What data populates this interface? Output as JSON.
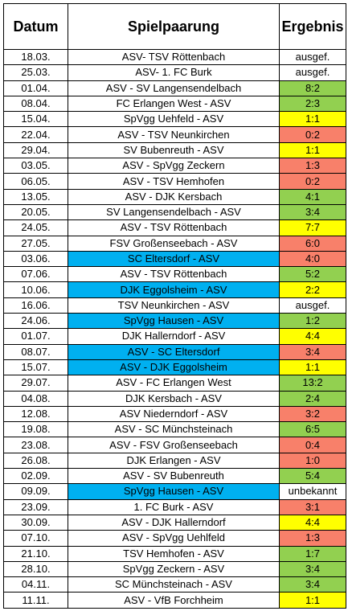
{
  "header": {
    "date": "Datum",
    "match": "Spielpaarung",
    "result": "Ergebnis"
  },
  "colors": {
    "win": "#92d050",
    "draw": "#ffff00",
    "loss": "#f8806a",
    "highlight": "#00b0f0",
    "none": "#ffffff"
  },
  "rows": [
    {
      "date": "18.03.",
      "match": "ASV- TSV Röttenbach",
      "result": "ausgef.",
      "result_status": "none",
      "match_highlight": false
    },
    {
      "date": "25.03.",
      "match": "ASV- 1. FC Burk",
      "result": "ausgef.",
      "result_status": "none",
      "match_highlight": false
    },
    {
      "date": "01.04.",
      "match": "ASV - SV Langensendelbach",
      "result": "8:2",
      "result_status": "win",
      "match_highlight": false
    },
    {
      "date": "08.04.",
      "match": "FC Erlangen West - ASV",
      "result": "2:3",
      "result_status": "win",
      "match_highlight": false
    },
    {
      "date": "15.04.",
      "match": "SpVgg Uehfeld - ASV",
      "result": "1:1",
      "result_status": "draw",
      "match_highlight": false
    },
    {
      "date": "22.04.",
      "match": "ASV - TSV Neunkirchen",
      "result": "0:2",
      "result_status": "loss",
      "match_highlight": false
    },
    {
      "date": "29.04.",
      "match": "SV Bubenreuth - ASV",
      "result": "1:1",
      "result_status": "draw",
      "match_highlight": false
    },
    {
      "date": "03.05.",
      "match": "ASV - SpVgg Zeckern",
      "result": "1:3",
      "result_status": "loss",
      "match_highlight": false
    },
    {
      "date": "06.05.",
      "match": "ASV - TSV Hemhofen",
      "result": "0:2",
      "result_status": "loss",
      "match_highlight": false
    },
    {
      "date": "13.05.",
      "match": "ASV - DJK Kersbach",
      "result": "4:1",
      "result_status": "win",
      "match_highlight": false
    },
    {
      "date": "20.05.",
      "match": "SV Langensendelbach - ASV",
      "result": "3:4",
      "result_status": "win",
      "match_highlight": false
    },
    {
      "date": "24.05.",
      "match": "ASV - TSV Röttenbach",
      "result": "7:7",
      "result_status": "draw",
      "match_highlight": false
    },
    {
      "date": "27.05.",
      "match": "FSV Großenseebach - ASV",
      "result": "6:0",
      "result_status": "loss",
      "match_highlight": false
    },
    {
      "date": "03.06.",
      "match": "SC Eltersdorf - ASV",
      "result": "4:0",
      "result_status": "loss",
      "match_highlight": true
    },
    {
      "date": "07.06.",
      "match": "ASV - TSV Röttenbach",
      "result": "5:2",
      "result_status": "win",
      "match_highlight": false
    },
    {
      "date": "10.06.",
      "match": "DJK Eggolsheim - ASV",
      "result": "2:2",
      "result_status": "draw",
      "match_highlight": true
    },
    {
      "date": "16.06.",
      "match": "TSV Neunkirchen - ASV",
      "result": "ausgef.",
      "result_status": "none",
      "match_highlight": false
    },
    {
      "date": "24.06.",
      "match": "SpVgg Hausen - ASV",
      "result": "1:2",
      "result_status": "win",
      "match_highlight": true
    },
    {
      "date": "01.07.",
      "match": "DJK Hallerndorf - ASV",
      "result": "4:4",
      "result_status": "draw",
      "match_highlight": false
    },
    {
      "date": "08.07.",
      "match": "ASV - SC Eltersdorf",
      "result": "3:4",
      "result_status": "loss",
      "match_highlight": true
    },
    {
      "date": "15.07.",
      "match": "ASV - DJK Eggolsheim",
      "result": "1:1",
      "result_status": "draw",
      "match_highlight": true
    },
    {
      "date": "29.07.",
      "match": "ASV - FC Erlangen West",
      "result": "13:2",
      "result_status": "win",
      "match_highlight": false
    },
    {
      "date": "04.08.",
      "match": "DJK Kersbach - ASV",
      "result": "2:4",
      "result_status": "win",
      "match_highlight": false
    },
    {
      "date": "12.08.",
      "match": "ASV Niederndorf - ASV",
      "result": "3:2",
      "result_status": "loss",
      "match_highlight": false
    },
    {
      "date": "19.08.",
      "match": "ASV - SC Münchsteinach",
      "result": "6:5",
      "result_status": "win",
      "match_highlight": false
    },
    {
      "date": "23.08.",
      "match": "ASV - FSV Großenseebach",
      "result": "0:4",
      "result_status": "loss",
      "match_highlight": false
    },
    {
      "date": "26.08.",
      "match": "DJK Erlangen - ASV",
      "result": "1:0",
      "result_status": "loss",
      "match_highlight": false
    },
    {
      "date": "02.09.",
      "match": "ASV - SV Bubenreuth",
      "result": "5:4",
      "result_status": "win",
      "match_highlight": false
    },
    {
      "date": "09.09.",
      "match": "SpVgg Hausen - ASV",
      "result": "unbekannt",
      "result_status": "none",
      "match_highlight": true
    },
    {
      "date": "23.09.",
      "match": "1. FC Burk - ASV",
      "result": "3:1",
      "result_status": "loss",
      "match_highlight": false
    },
    {
      "date": "30.09.",
      "match": "ASV - DJK Hallerndorf",
      "result": "4:4",
      "result_status": "draw",
      "match_highlight": false
    },
    {
      "date": "07.10.",
      "match": "ASV - SpVgg Uehlfeld",
      "result": "1:3",
      "result_status": "loss",
      "match_highlight": false
    },
    {
      "date": "21.10.",
      "match": "TSV Hemhofen - ASV",
      "result": "1:7",
      "result_status": "win",
      "match_highlight": false
    },
    {
      "date": "28.10.",
      "match": "SpVgg Zeckern - ASV",
      "result": "3:4",
      "result_status": "win",
      "match_highlight": false
    },
    {
      "date": "04.11.",
      "match": "SC Münchsteinach - ASV",
      "result": "3:4",
      "result_status": "win",
      "match_highlight": false
    },
    {
      "date": "11.11.",
      "match": "ASV - VfB Forchheim",
      "result": "1:1",
      "result_status": "draw",
      "match_highlight": false
    }
  ]
}
